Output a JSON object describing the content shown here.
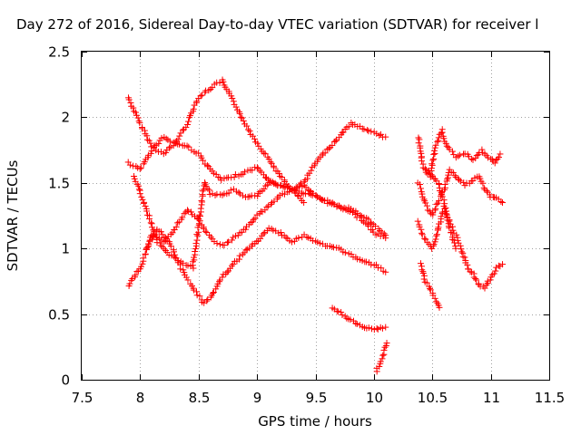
{
  "chart_data": {
    "type": "scatter",
    "title": "Day 272 of 2016, Sidereal Day-to-day VTEC variation (SDTVAR) for receiver l",
    "xlabel": "GPS time / hours",
    "ylabel": "SDTVAR / TECUs",
    "xlim": [
      7.5,
      11.5
    ],
    "ylim": [
      0,
      2.5
    ],
    "xticks": [
      "7.5",
      "8",
      "8.5",
      "9",
      "9.5",
      "10",
      "10.5",
      "11",
      "11.5"
    ],
    "yticks": [
      "0",
      "0.5",
      "1",
      "1.5",
      "2",
      "2.5"
    ],
    "grid": true,
    "marker": "+",
    "color": "#ff0000",
    "tracks": [
      {
        "x": [
          7.9,
          8.0,
          8.1,
          8.2,
          8.3,
          8.4,
          8.5,
          8.6,
          8.7,
          8.8,
          8.9,
          9.0,
          9.1,
          9.2,
          9.3,
          9.4
        ],
        "y": [
          2.15,
          1.95,
          1.78,
          1.72,
          1.8,
          1.95,
          2.15,
          2.22,
          2.28,
          2.12,
          1.95,
          1.8,
          1.68,
          1.55,
          1.45,
          1.35
        ]
      },
      {
        "x": [
          7.9,
          8.0,
          8.1,
          8.2,
          8.3,
          8.4,
          8.5,
          8.6,
          8.7,
          8.8,
          8.9,
          9.0,
          9.1,
          9.2,
          9.3,
          9.4,
          9.5,
          9.6,
          9.7,
          9.8,
          9.9,
          10.0,
          10.1
        ],
        "y": [
          1.65,
          1.6,
          1.75,
          1.85,
          1.8,
          1.78,
          1.72,
          1.6,
          1.52,
          1.55,
          1.58,
          1.62,
          1.52,
          1.48,
          1.45,
          1.42,
          1.4,
          1.36,
          1.32,
          1.28,
          1.22,
          1.12,
          1.08
        ]
      },
      {
        "x": [
          7.95,
          8.05,
          8.15,
          8.25,
          8.35,
          8.45,
          8.55,
          8.6,
          8.7,
          8.8,
          8.9,
          9.0,
          9.1,
          9.2,
          9.3,
          9.4,
          9.5,
          9.6,
          9.7,
          9.8,
          9.9,
          10.0,
          10.1
        ],
        "y": [
          1.55,
          1.3,
          1.05,
          0.95,
          0.9,
          0.85,
          1.5,
          1.42,
          1.4,
          1.45,
          1.4,
          1.4,
          1.5,
          1.48,
          1.45,
          1.5,
          1.65,
          1.75,
          1.85,
          1.95,
          1.92,
          1.88,
          1.85
        ]
      },
      {
        "x": [
          7.9,
          8.0,
          8.1,
          8.2,
          8.3,
          8.4,
          8.5,
          8.6,
          8.7,
          8.8,
          8.9,
          9.0,
          9.1,
          9.2,
          9.3,
          9.4,
          9.5,
          9.6,
          9.7,
          9.8,
          9.9,
          10.0,
          10.1
        ],
        "y": [
          0.72,
          0.85,
          1.1,
          1.05,
          1.15,
          1.3,
          1.22,
          1.08,
          1.02,
          1.08,
          1.15,
          1.25,
          1.32,
          1.4,
          1.45,
          1.48,
          1.4,
          1.35,
          1.32,
          1.3,
          1.25,
          1.18,
          1.1
        ]
      },
      {
        "x": [
          8.05,
          8.15,
          8.25,
          8.35,
          8.45,
          8.55,
          8.6,
          8.7,
          8.8,
          8.9,
          9.0,
          9.1,
          9.2,
          9.3,
          9.4,
          9.5,
          9.6,
          9.7,
          9.8,
          9.9,
          10.0,
          10.1
        ],
        "y": [
          1.0,
          1.15,
          1.05,
          0.85,
          0.7,
          0.58,
          0.62,
          0.78,
          0.88,
          0.98,
          1.05,
          1.15,
          1.12,
          1.05,
          1.1,
          1.05,
          1.02,
          1.0,
          0.95,
          0.9,
          0.88,
          0.82
        ]
      },
      {
        "x": [
          9.65,
          9.7,
          9.8,
          9.9,
          10.0,
          10.1
        ],
        "y": [
          0.55,
          0.52,
          0.45,
          0.4,
          0.38,
          0.4
        ]
      },
      {
        "x": [
          10.02,
          10.05,
          10.08,
          10.11
        ],
        "y": [
          0.06,
          0.12,
          0.2,
          0.28
        ]
      },
      {
        "x": [
          10.38,
          10.42,
          10.48,
          10.52,
          10.58,
          10.62,
          10.7,
          10.78,
          10.85,
          10.92,
          10.98,
          11.04,
          11.08
        ],
        "y": [
          1.85,
          1.62,
          1.55,
          1.75,
          1.9,
          1.78,
          1.7,
          1.72,
          1.68,
          1.75,
          1.7,
          1.65,
          1.72
        ]
      },
      {
        "x": [
          10.38,
          10.42,
          10.46,
          10.5,
          10.55,
          10.6,
          10.65,
          10.7,
          10.78,
          10.85,
          10.9,
          10.95,
          11.0,
          11.05,
          11.1
        ],
        "y": [
          1.5,
          1.4,
          1.3,
          1.25,
          1.35,
          1.45,
          1.6,
          1.55,
          1.48,
          1.52,
          1.55,
          1.45,
          1.4,
          1.38,
          1.35
        ]
      },
      {
        "x": [
          10.38,
          10.42,
          10.46,
          10.5,
          10.55,
          10.6,
          10.65,
          10.7,
          10.75,
          10.8,
          10.85,
          10.9,
          10.95,
          11.0,
          11.05,
          11.1
        ],
        "y": [
          1.2,
          1.1,
          1.05,
          1.0,
          1.15,
          1.3,
          1.2,
          1.1,
          1.0,
          0.85,
          0.8,
          0.72,
          0.7,
          0.78,
          0.85,
          0.88
        ]
      },
      {
        "x": [
          10.4,
          10.44,
          10.48,
          10.52,
          10.56
        ],
        "y": [
          0.88,
          0.75,
          0.7,
          0.62,
          0.55
        ]
      },
      {
        "x": [
          10.45,
          10.5,
          10.55,
          10.6,
          10.65,
          10.7
        ],
        "y": [
          1.6,
          1.55,
          1.5,
          1.35,
          1.15,
          1.0
        ]
      }
    ]
  }
}
